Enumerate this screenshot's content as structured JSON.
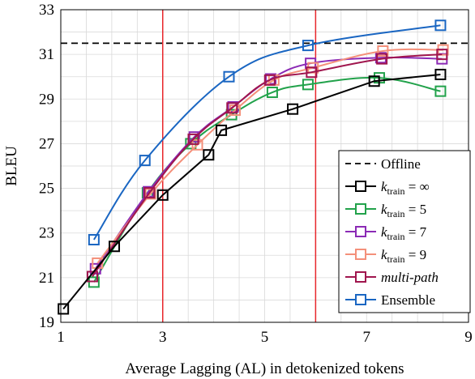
{
  "chart_data": {
    "type": "line",
    "title": "",
    "xlabel": "Average Lagging (AL) in detokenized tokens",
    "ylabel": "BLEU",
    "xlim": [
      1,
      9
    ],
    "ylim": [
      19,
      33
    ],
    "xticks": [
      1,
      3,
      5,
      7,
      9
    ],
    "yticks": [
      19,
      21,
      23,
      25,
      27,
      29,
      31,
      33
    ],
    "grid": true,
    "legend_position": "bottom-right",
    "reference_lines": {
      "offline_bleu": 31.5,
      "vertical_al": [
        3,
        6
      ]
    },
    "series": [
      {
        "name": "Offline",
        "style": "dashed",
        "color": "#000000",
        "marker": "none",
        "points": []
      },
      {
        "name": "k_train = ∞",
        "legend": {
          "k": "k",
          "sub": "train",
          "rest": " = ∞"
        },
        "color": "#000000",
        "marker": "square",
        "points": [
          [
            1.05,
            19.6
          ],
          [
            2.05,
            22.4
          ],
          [
            3.0,
            24.7
          ],
          [
            3.9,
            26.5
          ],
          [
            4.15,
            27.6
          ],
          [
            5.55,
            28.55
          ],
          [
            7.15,
            29.8
          ],
          [
            8.45,
            30.1
          ]
        ]
      },
      {
        "name": "k_train = 5",
        "legend": {
          "k": "k",
          "sub": "train",
          "rest": " = 5"
        },
        "color": "#22a24b",
        "marker": "square",
        "points": [
          [
            1.65,
            20.8
          ],
          [
            2.7,
            24.8
          ],
          [
            3.55,
            27.0
          ],
          [
            4.35,
            28.3
          ],
          [
            5.15,
            29.3
          ],
          [
            5.85,
            29.65
          ],
          [
            7.25,
            29.95
          ],
          [
            8.45,
            29.35
          ]
        ]
      },
      {
        "name": "k_train = 7",
        "legend": {
          "k": "k",
          "sub": "train",
          "rest": " = 7"
        },
        "color": "#8b2ab5",
        "marker": "square",
        "points": [
          [
            1.68,
            21.4
          ],
          [
            2.72,
            24.85
          ],
          [
            3.62,
            27.3
          ],
          [
            4.38,
            28.65
          ],
          [
            5.12,
            29.9
          ],
          [
            5.9,
            30.6
          ],
          [
            7.28,
            30.85
          ],
          [
            8.48,
            30.8
          ]
        ]
      },
      {
        "name": "k_train = 9",
        "legend": {
          "k": "k",
          "sub": "train",
          "rest": " = 9"
        },
        "color": "#f4907a",
        "marker": "square",
        "points": [
          [
            1.72,
            21.65
          ],
          [
            2.76,
            24.75
          ],
          [
            3.68,
            26.95
          ],
          [
            4.42,
            28.5
          ],
          [
            5.18,
            29.85
          ],
          [
            5.95,
            30.4
          ],
          [
            7.32,
            31.15
          ],
          [
            8.5,
            31.2
          ]
        ]
      },
      {
        "name": "multi-path",
        "legend": {
          "k": "",
          "sub": "",
          "rest": "multi-path"
        },
        "color": "#a0164e",
        "marker": "square",
        "points": [
          [
            1.62,
            21.05
          ],
          [
            2.74,
            24.8
          ],
          [
            3.6,
            27.2
          ],
          [
            4.36,
            28.6
          ],
          [
            5.1,
            29.85
          ],
          [
            5.92,
            30.2
          ],
          [
            7.3,
            30.8
          ],
          [
            8.48,
            31.0
          ]
        ]
      },
      {
        "name": "Ensemble",
        "legend": {
          "k": "",
          "sub": "",
          "rest": "Ensemble"
        },
        "color": "#1a66c2",
        "marker": "square",
        "points": [
          [
            1.65,
            22.7
          ],
          [
            2.65,
            26.25
          ],
          [
            4.3,
            30.0
          ],
          [
            5.85,
            31.4
          ],
          [
            8.45,
            32.3
          ]
        ]
      }
    ]
  }
}
